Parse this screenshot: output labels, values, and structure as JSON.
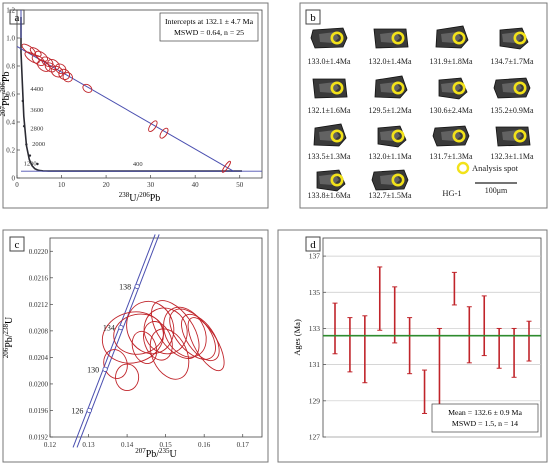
{
  "colors": {
    "ellipse": "#c0242a",
    "concordia": "#2b2b33",
    "discordia": "#4a4fb0",
    "mean_line": "#2e8b2e",
    "error_bar": "#c0242a",
    "spot": "#f2e21a",
    "grid": "#c8c8c8",
    "frame": "#555555"
  },
  "chart_data": [
    {
      "panel": "a",
      "type": "scatter",
      "subtype": "Tera-Wasserburg concordia",
      "xlabel_sup": "238",
      "xlabel_main": "U/",
      "xlabel_sup2": "206",
      "xlabel_end": "Pb",
      "ylabel_sup": "207",
      "ylabel_main": "Pb/",
      "ylabel_sup2": "206",
      "ylabel_end": "Pb",
      "xlim": [
        0,
        55
      ],
      "ylim": [
        0,
        1.2
      ],
      "xticks": [
        "0",
        "10",
        "20",
        "30",
        "40",
        "50"
      ],
      "yticks": [
        "0",
        "0.2",
        "0.4",
        "0.6",
        "0.8",
        "1.0",
        "1.2"
      ],
      "legend_lines": [
        "Intercepts at 132.1 ± 4.7 Ma",
        "MSWD = 0.64, n = 25"
      ],
      "age_labels": [
        "4400",
        "3600",
        "2800",
        "2000",
        "1200",
        "400"
      ],
      "discordia": {
        "y0": 0.94,
        "x1": 48.6,
        "y1": 0.049
      },
      "ellipses": [
        {
          "x": 2.6,
          "y": 0.92,
          "rx": 0.7,
          "ry": 0.055
        },
        {
          "x": 3.4,
          "y": 0.86,
          "rx": 0.8,
          "ry": 0.06
        },
        {
          "x": 4.2,
          "y": 0.9,
          "rx": 0.7,
          "ry": 0.045
        },
        {
          "x": 4.8,
          "y": 0.84,
          "rx": 0.9,
          "ry": 0.05
        },
        {
          "x": 5.5,
          "y": 0.87,
          "rx": 0.8,
          "ry": 0.05
        },
        {
          "x": 6.0,
          "y": 0.8,
          "rx": 1.0,
          "ry": 0.05
        },
        {
          "x": 6.8,
          "y": 0.83,
          "rx": 0.9,
          "ry": 0.045
        },
        {
          "x": 7.5,
          "y": 0.79,
          "rx": 0.9,
          "ry": 0.04
        },
        {
          "x": 8.2,
          "y": 0.81,
          "rx": 1.0,
          "ry": 0.045
        },
        {
          "x": 9.0,
          "y": 0.76,
          "rx": 1.1,
          "ry": 0.045
        },
        {
          "x": 9.8,
          "y": 0.78,
          "rx": 1.0,
          "ry": 0.04
        },
        {
          "x": 10.6,
          "y": 0.74,
          "rx": 1.1,
          "ry": 0.04
        },
        {
          "x": 11.4,
          "y": 0.72,
          "rx": 1.0,
          "ry": 0.035
        },
        {
          "x": 15.8,
          "y": 0.64,
          "rx": 0.8,
          "ry": 0.035
        },
        {
          "x": 30.5,
          "y": 0.37,
          "rx": 1.4,
          "ry": 0.02
        },
        {
          "x": 33.0,
          "y": 0.32,
          "rx": 1.3,
          "ry": 0.02
        },
        {
          "x": 47.0,
          "y": 0.08,
          "rx": 1.5,
          "ry": 0.012
        }
      ]
    },
    {
      "panel": "b",
      "type": "image-grid",
      "ages": [
        [
          "133.0±1.4Ma",
          "132.0±1.4Ma",
          "131.9±1.8Ma",
          "134.7±1.7Ma"
        ],
        [
          "132.1±1.6Ma",
          "129.5±1.2Ma",
          "130.6±2.4Ma",
          "135.2±0.9Ma"
        ],
        [
          "133.5±1.3Ma",
          "132.0±1.1Ma",
          "131.7±1.3Ma",
          "132.3±1.1Ma"
        ],
        [
          "133.8±1.6Ma",
          "132.7±1.5Ma"
        ]
      ],
      "legend_label": "Analysis spot",
      "sample_label": "HG-1",
      "scale_label": "100μm"
    },
    {
      "panel": "c",
      "type": "scatter",
      "subtype": "Wetherill concordia",
      "xlabel_sup": "207",
      "xlabel_main": "Pb/",
      "xlabel_sup2": "235",
      "xlabel_end": "U",
      "ylabel_sup": "206",
      "ylabel_main": "Pb/",
      "ylabel_sup2": "238",
      "ylabel_end": "U",
      "xlim": [
        0.12,
        0.175
      ],
      "ylim": [
        0.0192,
        0.0222
      ],
      "xticks": [
        "0.12",
        "0.13",
        "0.14",
        "0.15",
        "0.16",
        "0.17"
      ],
      "yticks": [
        "0.0192",
        "0.0196",
        "0.0200",
        "0.0204",
        "0.0208",
        "0.0212",
        "0.0216",
        "0.0220"
      ],
      "concordia_points": [
        {
          "x": 0.1302,
          "y": 0.0196,
          "label": "126"
        },
        {
          "x": 0.1343,
          "y": 0.02022,
          "label": "130"
        },
        {
          "x": 0.1384,
          "y": 0.02085,
          "label": "134"
        },
        {
          "x": 0.1426,
          "y": 0.02147,
          "label": "138"
        }
      ],
      "ellipses": [
        {
          "x": 0.1415,
          "y": 0.0207,
          "rx": 0.008,
          "ry": 0.00038,
          "rot": -15
        },
        {
          "x": 0.143,
          "y": 0.02075,
          "rx": 0.0065,
          "ry": 0.0003,
          "rot": -10
        },
        {
          "x": 0.146,
          "y": 0.02085,
          "rx": 0.006,
          "ry": 0.0004,
          "rot": -20
        },
        {
          "x": 0.15,
          "y": 0.0208,
          "rx": 0.0055,
          "ry": 0.00035,
          "rot": -25
        },
        {
          "x": 0.1525,
          "y": 0.02082,
          "rx": 0.0045,
          "ry": 0.0005,
          "rot": -35
        },
        {
          "x": 0.155,
          "y": 0.02078,
          "rx": 0.005,
          "ry": 0.0004,
          "rot": -30
        },
        {
          "x": 0.157,
          "y": 0.02075,
          "rx": 0.0042,
          "ry": 0.00045,
          "rot": -40
        },
        {
          "x": 0.159,
          "y": 0.0207,
          "rx": 0.0035,
          "ry": 0.0004,
          "rot": -35
        },
        {
          "x": 0.1605,
          "y": 0.0206,
          "rx": 0.003,
          "ry": 0.00045,
          "rot": -30
        },
        {
          "x": 0.148,
          "y": 0.02065,
          "rx": 0.0035,
          "ry": 0.0003,
          "rot": -20
        },
        {
          "x": 0.1445,
          "y": 0.02055,
          "rx": 0.003,
          "ry": 0.00025,
          "rot": -20
        },
        {
          "x": 0.151,
          "y": 0.02045,
          "rx": 0.0045,
          "ry": 0.0004,
          "rot": -25
        },
        {
          "x": 0.137,
          "y": 0.0203,
          "rx": 0.003,
          "ry": 0.00022,
          "rot": -15
        },
        {
          "x": 0.14,
          "y": 0.0201,
          "rx": 0.003,
          "ry": 0.0002,
          "rot": 0
        }
      ]
    },
    {
      "panel": "d",
      "type": "errorbar",
      "ylabel": "Ages (Ma)",
      "ylim": [
        127,
        138
      ],
      "yticks": [
        "127",
        "129",
        "131",
        "133",
        "135",
        "137"
      ],
      "mean": 132.6,
      "legend_lines": [
        "Mean = 132.6 ± 0.9 Ma",
        "MSWD = 1.5, n = 14"
      ],
      "bars": [
        {
          "lo": 131.6,
          "hi": 134.4
        },
        {
          "lo": 130.6,
          "hi": 133.6
        },
        {
          "lo": 130.0,
          "hi": 133.7
        },
        {
          "lo": 132.9,
          "hi": 136.4
        },
        {
          "lo": 132.2,
          "hi": 135.3
        },
        {
          "lo": 130.5,
          "hi": 133.6
        },
        {
          "lo": 128.3,
          "hi": 130.7
        },
        {
          "lo": 128.2,
          "hi": 133.0
        },
        {
          "lo": 134.3,
          "hi": 136.1
        },
        {
          "lo": 131.1,
          "hi": 134.2
        },
        {
          "lo": 131.5,
          "hi": 134.8
        },
        {
          "lo": 130.8,
          "hi": 133.0
        },
        {
          "lo": 130.3,
          "hi": 133.0
        },
        {
          "lo": 131.2,
          "hi": 133.4
        }
      ]
    }
  ]
}
